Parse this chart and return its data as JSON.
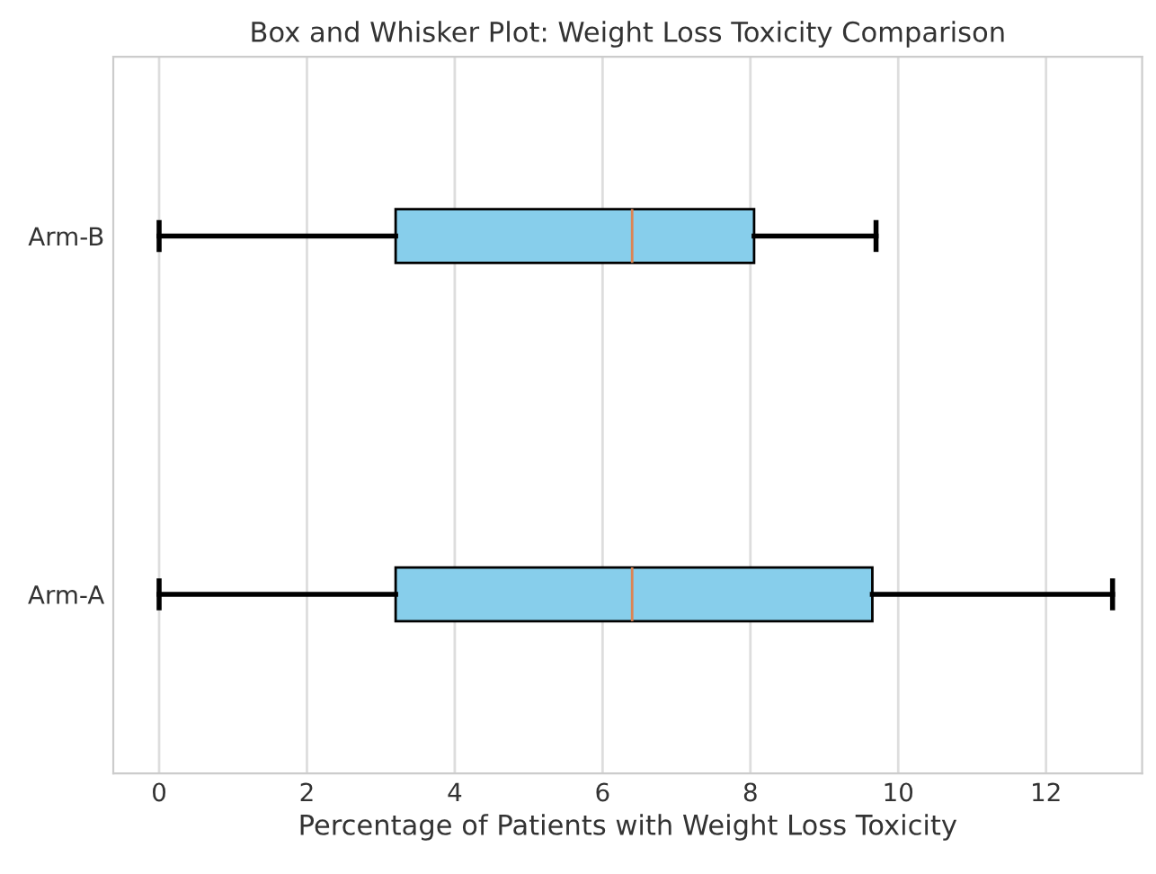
{
  "chart_data": {
    "type": "box",
    "title": "Box and Whisker Plot: Weight Loss Toxicity Comparison",
    "xlabel": "Percentage of Patients with Weight Loss Toxicity",
    "orientation": "horizontal",
    "categories": [
      "Arm-B",
      "Arm-A"
    ],
    "color": "#87ceeb",
    "boxes": [
      {
        "low": 0,
        "q1": 3.2,
        "median": 6.4,
        "q3": 8.05,
        "high": 9.7
      },
      {
        "low": 0,
        "q1": 3.2,
        "median": 6.4,
        "q3": 9.65,
        "high": 12.9
      }
    ],
    "xlim": [
      -0.62,
      13.3
    ],
    "xticks": [
      0,
      2,
      4,
      6,
      8,
      10,
      12
    ],
    "grid": "x"
  }
}
